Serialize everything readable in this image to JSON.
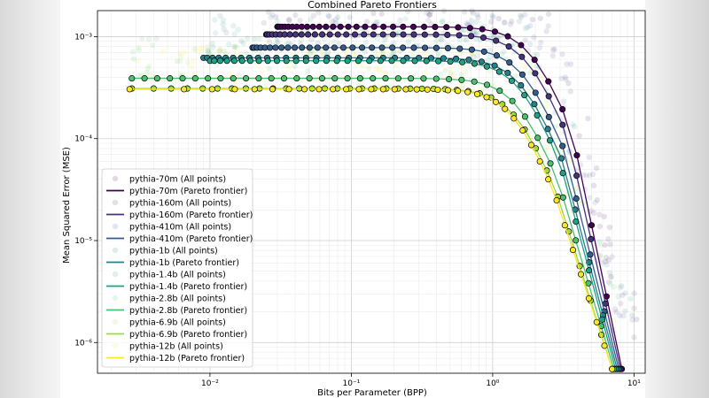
{
  "chart_data": {
    "type": "line",
    "title": "Combined Pareto Frontiers",
    "xlabel": "Bits per Parameter (BPP)",
    "ylabel": "Mean Squared Error (MSE)",
    "xscale": "log",
    "yscale": "log",
    "xlim": [
      0.0016,
      12
    ],
    "ylim": [
      5e-07,
      0.0018
    ],
    "grid": true,
    "legend_position": "left-center",
    "x_ticks": [
      {
        "value": 0.01,
        "label": "10⁻²"
      },
      {
        "value": 0.1,
        "label": "10⁻¹"
      },
      {
        "value": 1,
        "label": "10⁰"
      },
      {
        "value": 10,
        "label": "10¹"
      }
    ],
    "y_ticks": [
      {
        "value": 1e-06,
        "label": "10⁻⁶"
      },
      {
        "value": 1e-05,
        "label": "10⁻⁵"
      },
      {
        "value": 0.0001,
        "label": "10⁻⁴"
      },
      {
        "value": 0.001,
        "label": "10⁻³"
      }
    ],
    "series": [
      {
        "name": "pythia-70m",
        "color": "#440154",
        "y0": 0.00125,
        "xs": 0.03,
        "k": 1.7,
        "x90": 3.6,
        "xe": 8.2,
        "ye": 5.5e-07
      },
      {
        "name": "pythia-160m",
        "color": "#46327e",
        "y0": 0.00105,
        "xs": 0.025,
        "k": 1.6,
        "x90": 3.4,
        "xe": 8.0,
        "ye": 5.5e-07
      },
      {
        "name": "pythia-410m",
        "color": "#365c8d",
        "y0": 0.00078,
        "xs": 0.02,
        "k": 1.5,
        "x90": 3.2,
        "xe": 7.8,
        "ye": 5.5e-07
      },
      {
        "name": "pythia-1b",
        "color": "#277f8e",
        "y0": 0.00062,
        "xs": 0.009,
        "k": 1.3,
        "x90": 3.1,
        "xe": 7.6,
        "ye": 5.5e-07
      },
      {
        "name": "pythia-1.4b",
        "color": "#1fa187",
        "y0": 0.00058,
        "xs": 0.01,
        "k": 1.25,
        "x90": 3.0,
        "xe": 7.4,
        "ye": 5.5e-07
      },
      {
        "name": "pythia-2.8b",
        "color": "#4ac16d",
        "y0": 0.00039,
        "xs": 0.0028,
        "k": 1.0,
        "x90": 2.9,
        "xe": 7.2,
        "ye": 5.5e-07
      },
      {
        "name": "pythia-6.9b",
        "color": "#a0da39",
        "y0": 0.00031,
        "xs": 0.0028,
        "k": 0.85,
        "x90": 2.8,
        "xe": 7.0,
        "ye": 5.5e-07
      },
      {
        "name": "pythia-12b",
        "color": "#fde725",
        "y0": 0.000305,
        "xs": 0.0027,
        "k": 0.6,
        "x90": 2.7,
        "xe": 7.0,
        "ye": 5.5e-07
      }
    ],
    "legend": [
      "pythia-70m (All points)",
      "pythia-70m (Pareto frontier)",
      "pythia-160m (All points)",
      "pythia-160m (Pareto frontier)",
      "pythia-410m (All points)",
      "pythia-410m (Pareto frontier)",
      "pythia-1b (All points)",
      "pythia-1b (Pareto frontier)",
      "pythia-1.4b (All points)",
      "pythia-1.4b (Pareto frontier)",
      "pythia-2.8b (All points)",
      "pythia-2.8b (Pareto frontier)",
      "pythia-6.9b (All points)",
      "pythia-6.9b (Pareto frontier)",
      "pythia-12b (All points)",
      "pythia-12b (Pareto frontier)"
    ]
  }
}
